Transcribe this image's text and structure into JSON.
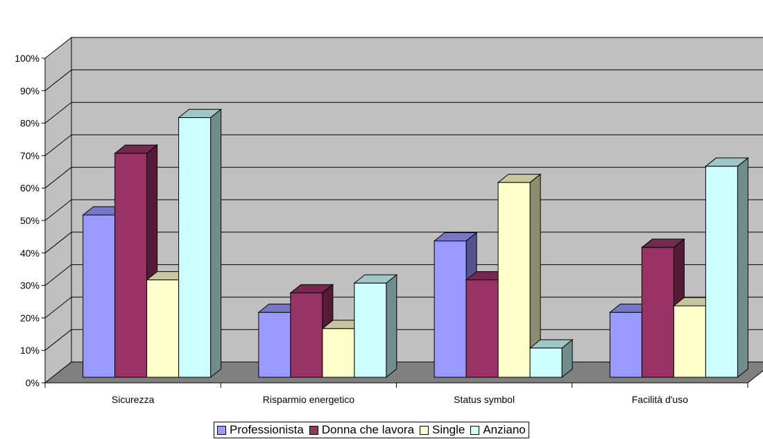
{
  "chart_data": {
    "type": "bar",
    "categories": [
      "Sicurezza",
      "Risparmio energetico",
      "Status symbol",
      "Facilità d'uso"
    ],
    "series": [
      {
        "name": "Professionista",
        "values": [
          50,
          20,
          42,
          20
        ],
        "color": "#9999FF"
      },
      {
        "name": "Donna che lavora",
        "values": [
          69,
          26,
          30,
          40
        ],
        "color": "#993366"
      },
      {
        "name": "Single",
        "values": [
          30,
          15,
          60,
          22
        ],
        "color": "#FFFFCC"
      },
      {
        "name": "Anziano",
        "values": [
          80,
          29,
          9,
          65
        ],
        "color": "#CCFFFF"
      }
    ],
    "y_ticks": [
      "0%",
      "10%",
      "20%",
      "30%",
      "40%",
      "50%",
      "60%",
      "70%",
      "80%",
      "90%",
      "100%"
    ],
    "ylim": [
      0,
      100
    ],
    "grid": true,
    "legend_position": "bottom",
    "three_d": true,
    "wall_color": "#C0C0C0",
    "floor_color": "#808080"
  }
}
